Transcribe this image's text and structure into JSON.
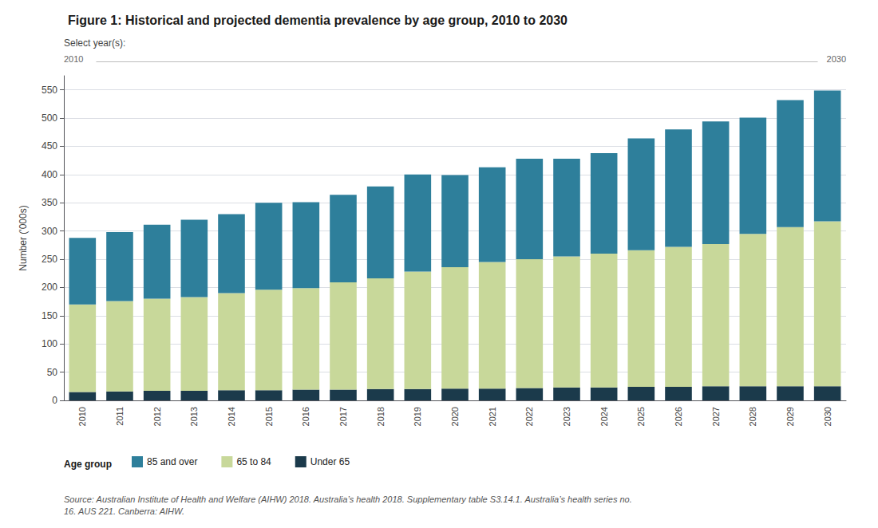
{
  "chart_data": {
    "type": "bar",
    "title": "Figure 1: Historical and projected dementia prevalence by age group, 2010 to 2030",
    "ylabel": "Number ('000s)",
    "categories": [
      "2010",
      "2011",
      "2012",
      "2013",
      "2014",
      "2015",
      "2016",
      "2017",
      "2018",
      "2019",
      "2020",
      "2021",
      "2022",
      "2023",
      "2024",
      "2025",
      "2026",
      "2027",
      "2028",
      "2029",
      "2030"
    ],
    "series": [
      {
        "name": "Under 65",
        "color": "#1b3a4b",
        "values": [
          15,
          16,
          17,
          17,
          18,
          18,
          19,
          19,
          20,
          20,
          21,
          21,
          22,
          23,
          23,
          24,
          24,
          25,
          25,
          25,
          25
        ]
      },
      {
        "name": "65 to 84",
        "color": "#c8d89a",
        "values": [
          155,
          160,
          163,
          166,
          172,
          178,
          180,
          190,
          196,
          208,
          215,
          224,
          228,
          232,
          237,
          242,
          248,
          252,
          270,
          282,
          292
        ]
      },
      {
        "name": "85 and over",
        "color": "#2e7f9b",
        "values": [
          118,
          122,
          131,
          137,
          140,
          154,
          152,
          155,
          163,
          172,
          163,
          168,
          178,
          173,
          178,
          198,
          208,
          217,
          206,
          225,
          232
        ]
      }
    ],
    "stacked": true,
    "ylim": [
      0,
      575
    ],
    "yticks": [
      0,
      50,
      100,
      150,
      200,
      250,
      300,
      350,
      400,
      450,
      500,
      550
    ],
    "grid": true,
    "legend": "bottom",
    "legend_title": "Age group",
    "annotations": [
      "Select year(s):",
      "2010",
      "2030"
    ],
    "source": "Source: Australian Institute of Health and Welfare (AIHW) 2018. Australia’s health 2018. Supplementary table S3.14.1. Australia’s health series no.\n16. AUS 221. Canberra: AIHW."
  }
}
